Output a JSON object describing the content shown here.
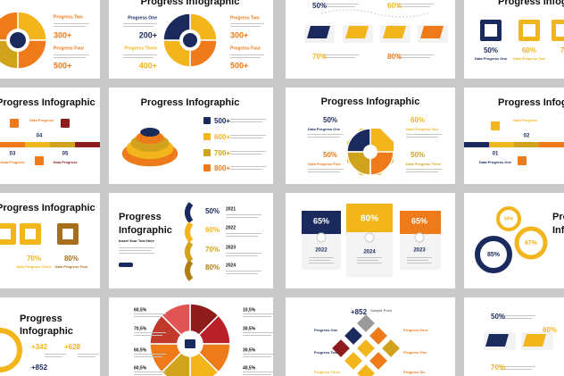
{
  "slides": [
    {
      "texts": [
        "Progress Two",
        "300+",
        "Progress Four",
        "500+"
      ]
    },
    {
      "texts": [
        "Progress Infographic",
        "Progress One",
        "200+",
        "Progress Three",
        "400+",
        "Progress Two",
        "300+",
        "Progress Four",
        "500+"
      ]
    },
    {
      "texts": [
        "50%",
        "60%",
        "70%",
        "80%"
      ]
    },
    {
      "texts": [
        "Progress Infographic",
        "50%",
        "Data Progress One",
        "60%",
        "Data Progress Two",
        "70%"
      ]
    },
    {
      "texts": [
        "Progress Infographic",
        "Data Progress",
        "04",
        "03",
        "05",
        "Data Progress",
        "Data Progress"
      ]
    },
    {
      "texts": [
        "Progress Infographic",
        "500+",
        "600+",
        "700+",
        "800+"
      ]
    },
    {
      "texts": [
        "Progress Infographic",
        "50%",
        "Data Progress One",
        "60%",
        "Data Progress Two",
        "50%",
        "Data Progress Four",
        "50%",
        "Data Progress Three"
      ]
    },
    {
      "texts": [
        "Progress Infographic",
        "Data Progress",
        "01",
        "02",
        "Data Progress One"
      ]
    },
    {
      "texts": [
        "Progress Infographic",
        "70%",
        "Data Progress Three",
        "80%",
        "Data Progress Four"
      ]
    },
    {
      "texts": [
        "Progress",
        "Infographic",
        "Insert Your Text Here",
        "50%",
        "2021",
        "60%",
        "2022",
        "70%",
        "2023",
        "80%",
        "2024"
      ]
    },
    {
      "texts": [
        "65%",
        "2022",
        "80%",
        "2024",
        "65%",
        "2023"
      ]
    },
    {
      "texts": [
        "Pro",
        "Inf",
        "50%",
        "67%",
        "85%"
      ]
    },
    {
      "texts": [
        "Progress",
        "Infographic",
        "+342",
        "+628",
        "+852"
      ]
    },
    {
      "texts": [
        "60,5%",
        "70,5%",
        "60,5%",
        "60,5%",
        "10,5%",
        "30,5%",
        "30,5%",
        "40,5%"
      ]
    },
    {
      "texts": [
        "+852",
        "Sample Point",
        "Progress One",
        "Progress Four",
        "Progress Two",
        "Progress Five",
        "Progress Three",
        "Progress Six"
      ]
    },
    {
      "texts": [
        "50%",
        "60%",
        "70%"
      ]
    }
  ]
}
